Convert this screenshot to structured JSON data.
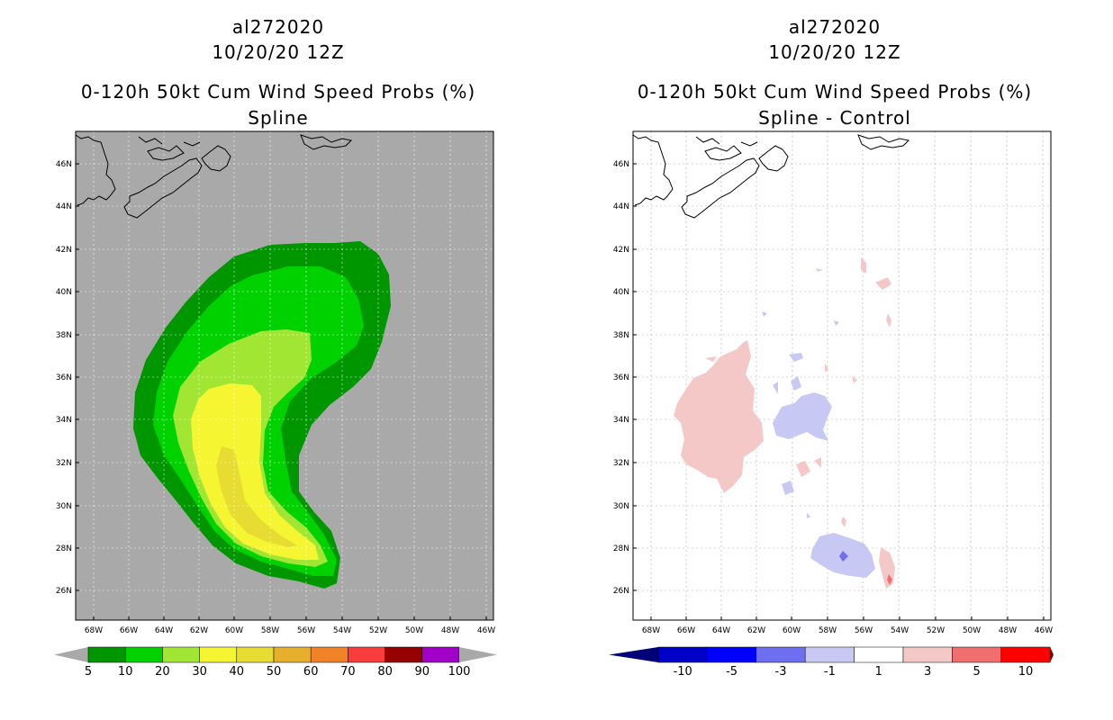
{
  "panels": [
    {
      "id": "left",
      "storm_id": "al272020",
      "date": "10/20/20 12Z",
      "product": "0-120h 50kt Cum Wind Speed Probs (%)",
      "subtitle": "Spline",
      "colorbar": {
        "labels": [
          "5",
          "10",
          "20",
          "30",
          "40",
          "50",
          "60",
          "70",
          "80",
          "90",
          "100"
        ],
        "colors": [
          "#009600",
          "#00d200",
          "#a0e632",
          "#f5f532",
          "#e6dc32",
          "#e6af2d",
          "#f08228",
          "#fa3c3c",
          "#960000",
          "#a000c8"
        ]
      }
    },
    {
      "id": "right",
      "storm_id": "al272020",
      "date": "10/20/20 12Z",
      "product": "0-120h 50kt Cum Wind Speed Probs (%)",
      "subtitle": "Spline - Control",
      "colorbar": {
        "labels": [
          "-10",
          "-5",
          "-3",
          "-1",
          "1",
          "3",
          "5",
          "10"
        ],
        "colors": [
          "#0000c8",
          "#0000ff",
          "#6e6ef0",
          "#c8c8f5",
          "#ffffff",
          "#f5c8c8",
          "#f06e6e",
          "#ff0000"
        ]
      }
    }
  ],
  "axes": {
    "lat_labels": [
      "46N",
      "44N",
      "42N",
      "40N",
      "38N",
      "36N",
      "34N",
      "32N",
      "30N",
      "28N",
      "26N"
    ],
    "lon_labels": [
      "68W",
      "66W",
      "64W",
      "62W",
      "60W",
      "58W",
      "56W",
      "54W",
      "52W",
      "50W",
      "48W",
      "46W"
    ]
  },
  "colors": {
    "no_data_gray": "#a9a9a9",
    "coastline": "#000000"
  }
}
